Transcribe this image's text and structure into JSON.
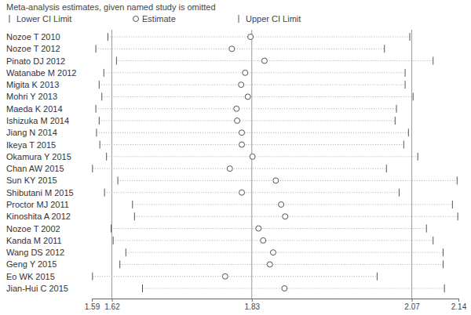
{
  "chart_data": {
    "type": "forest",
    "title": "Meta-analysis estimates, given named study is omitted",
    "orientation": "horizontal",
    "categories": [
      "Nozoe T 2010",
      "Nozoe T 2012",
      "Pinato DJ 2012",
      "Watanabe M 2012",
      "Migita K 2013",
      "Mohri Y 2013",
      "Maeda K 2014",
      "Ishizuka M 2014",
      "Jiang N 2014",
      "Ikeya T 2015",
      "Okamura Y 2015",
      "Chan AW 2015",
      "Sun KY 2015",
      "Shibutani M 2015",
      "Proctor MJ 2011",
      "Kinoshita A 2012",
      "Nozoe T 2002",
      "Kanda M 2011",
      "Wang DS 2012",
      "Geng Y 2015",
      "Eo WK 2015",
      "Jian-Hui C 2015"
    ],
    "series": [
      {
        "name": "Lower CI Limit",
        "marker": "vline",
        "color": "#555555",
        "values": [
          1.614,
          1.596,
          1.627,
          1.608,
          1.601,
          1.605,
          1.596,
          1.601,
          1.597,
          1.602,
          1.612,
          1.591,
          1.629,
          1.609,
          1.651,
          1.654,
          1.619,
          1.622,
          1.641,
          1.632,
          1.591,
          1.666
        ]
      },
      {
        "name": "Estimate",
        "marker": "circle",
        "color": "#555555",
        "values": [
          1.828,
          1.8,
          1.849,
          1.82,
          1.814,
          1.824,
          1.807,
          1.808,
          1.815,
          1.815,
          1.831,
          1.797,
          1.866,
          1.815,
          1.874,
          1.88,
          1.84,
          1.847,
          1.862,
          1.857,
          1.79,
          1.879
        ]
      },
      {
        "name": "Upper CI Limit",
        "marker": "vline",
        "color": "#555555",
        "values": [
          2.067,
          2.029,
          2.102,
          2.06,
          2.06,
          2.072,
          2.047,
          2.045,
          2.065,
          2.058,
          2.079,
          2.032,
          2.138,
          2.051,
          2.131,
          2.139,
          2.092,
          2.102,
          2.117,
          2.117,
          2.018,
          2.119
        ]
      }
    ],
    "reference_lines": [
      1.62,
      1.83,
      2.07
    ],
    "xlim": [
      1.59,
      2.14
    ],
    "xticks": [
      1.59,
      1.62,
      1.83,
      2.07,
      2.14
    ]
  }
}
